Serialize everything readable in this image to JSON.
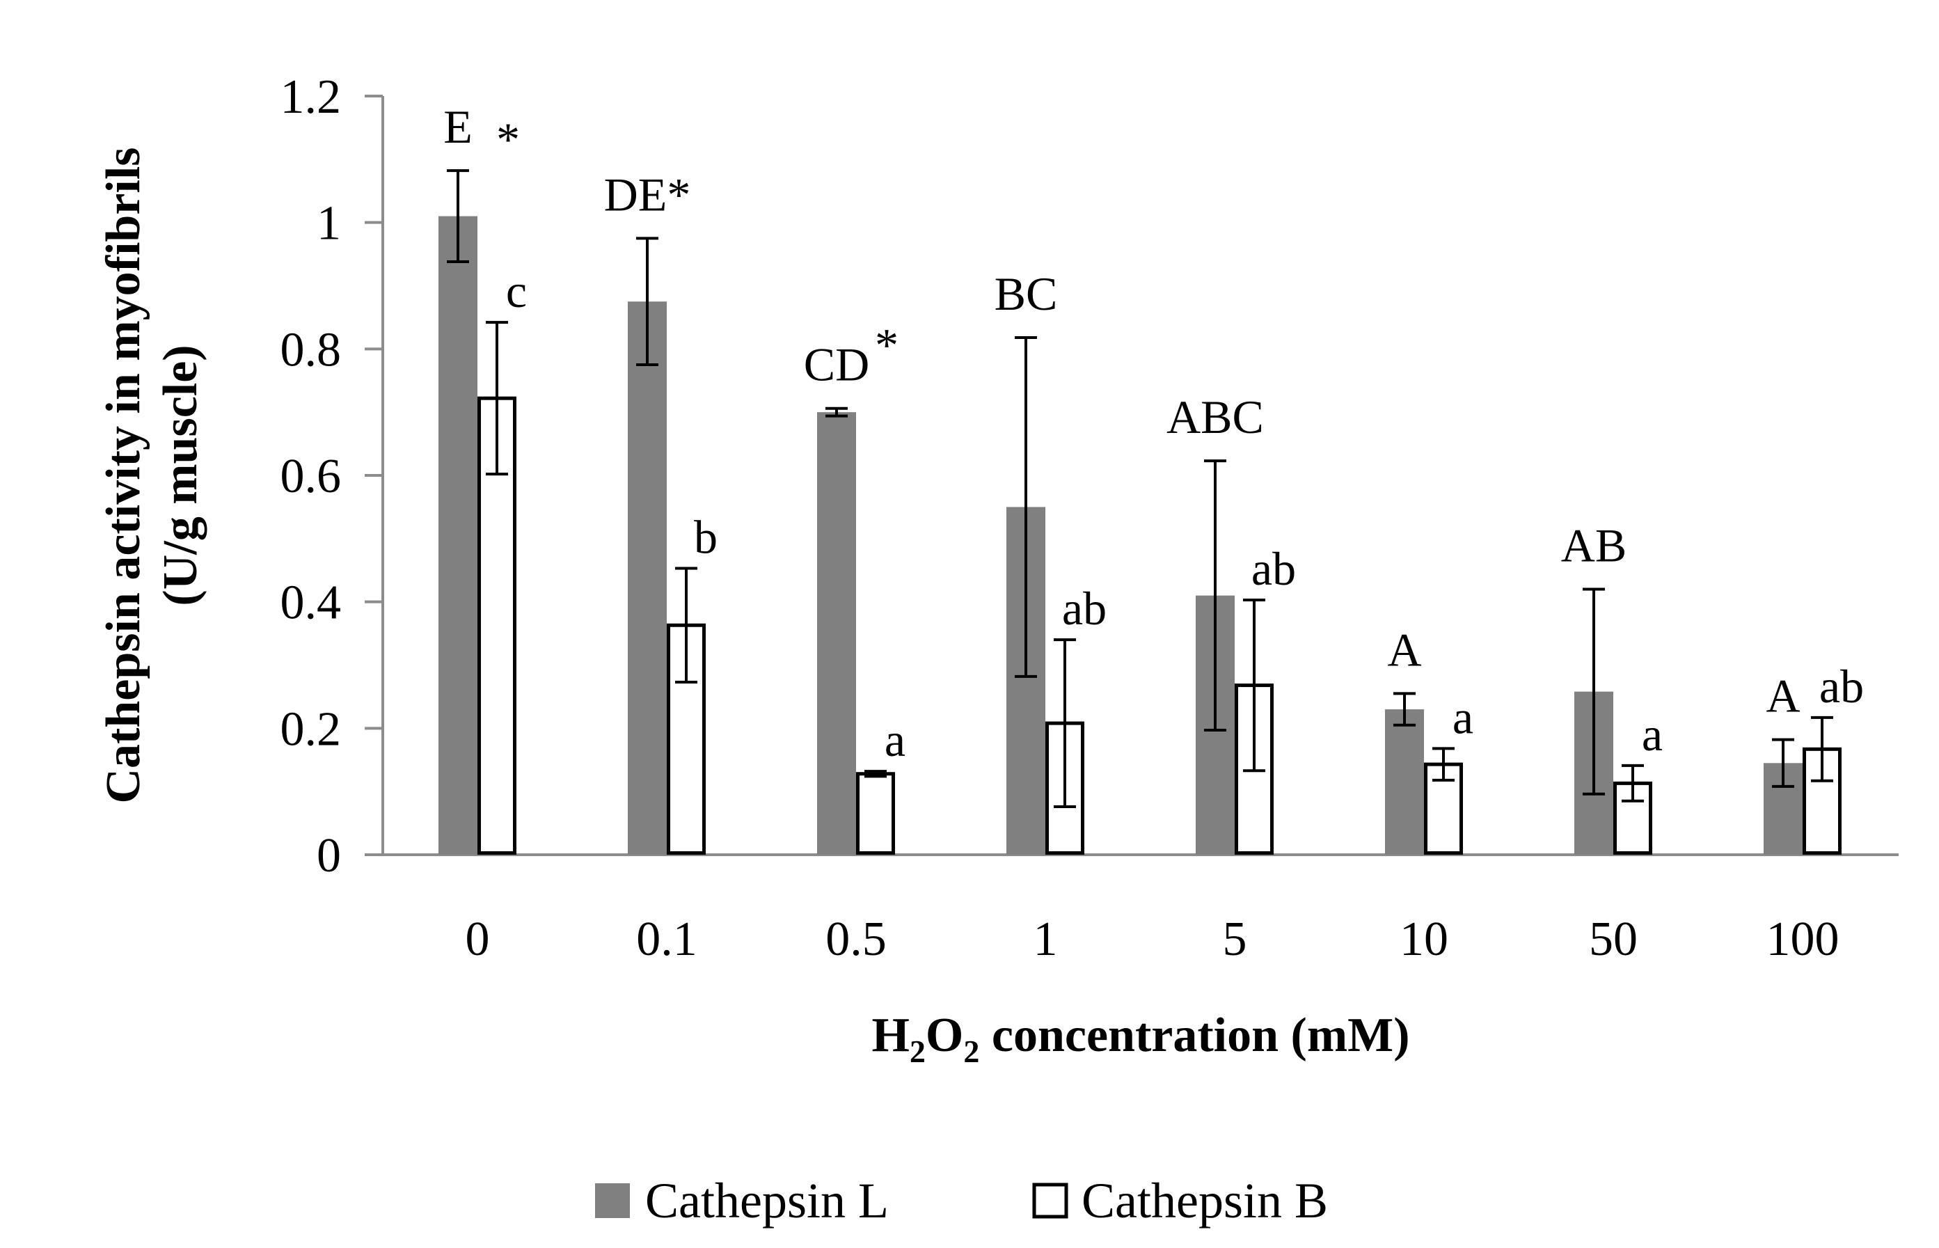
{
  "chart_data": {
    "type": "bar",
    "title": "",
    "xlabel": {
      "main_prefix": "H",
      "sub1": "2",
      "mid": "O",
      "sub2": "2",
      "suffix": " concentration (mM)"
    },
    "ylabel": {
      "line1": "Cathepsin activity in myofibrils",
      "line2": "(U/g muscle)"
    },
    "ylim": [
      0,
      1.2
    ],
    "yticks": [
      "0",
      "0.2",
      "0.4",
      "0.6",
      "0.8",
      "1",
      "1.2"
    ],
    "ytick_values": [
      0,
      0.2,
      0.4,
      0.6,
      0.8,
      1.0,
      1.2
    ],
    "categories": [
      "0",
      "0.1",
      "0.5",
      "1",
      "5",
      "10",
      "50",
      "100"
    ],
    "series": [
      {
        "name": "Cathepsin L",
        "color": "#808080",
        "values": [
          1.01,
          0.875,
          0.7,
          0.55,
          0.41,
          0.23,
          0.258,
          0.145
        ],
        "errors": [
          0.072,
          0.1,
          0.006,
          0.268,
          0.213,
          0.025,
          0.162,
          0.037
        ],
        "labels": [
          "E",
          "DE*",
          "CD",
          "BC",
          "ABC",
          "A",
          "AB",
          "A"
        ]
      },
      {
        "name": "Cathepsin B",
        "color": "#ffffff",
        "values": [
          0.722,
          0.363,
          0.128,
          0.208,
          0.268,
          0.143,
          0.113,
          0.167
        ],
        "errors": [
          0.12,
          0.09,
          0.004,
          0.132,
          0.135,
          0.025,
          0.028,
          0.05
        ],
        "labels": [
          "c",
          "b",
          "a",
          "ab",
          "ab",
          "a",
          "a",
          "ab"
        ]
      }
    ],
    "annotations": {
      "asterisk": "*"
    },
    "legend": {
      "position": "bottom-center",
      "items": [
        "Cathepsin L",
        "Cathepsin B"
      ]
    },
    "grid": false
  }
}
